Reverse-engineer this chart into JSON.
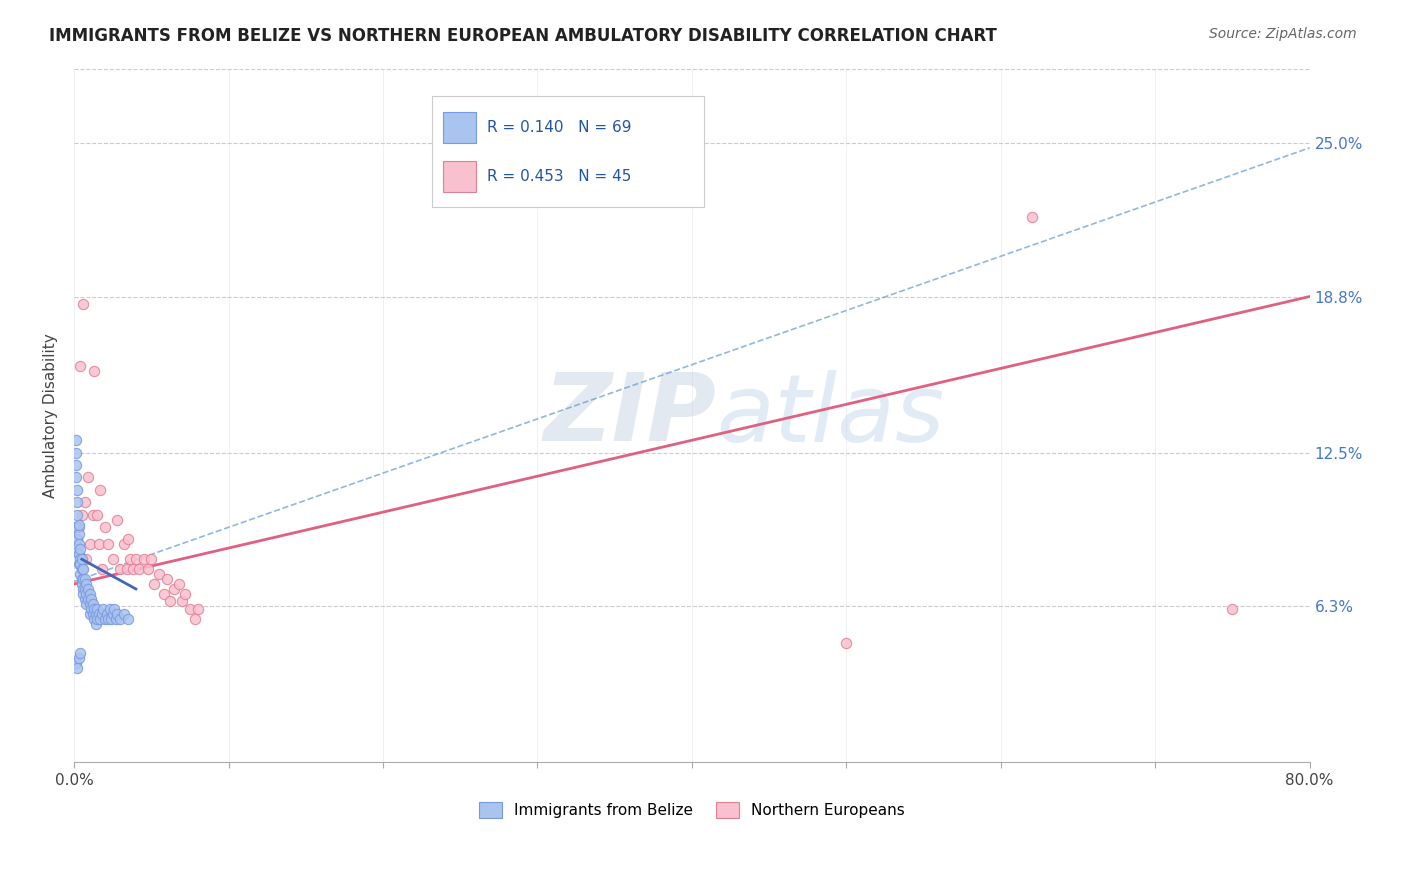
{
  "title": "IMMIGRANTS FROM BELIZE VS NORTHERN EUROPEAN AMBULATORY DISABILITY CORRELATION CHART",
  "source": "Source: ZipAtlas.com",
  "ylabel": "Ambulatory Disability",
  "xlim": [
    0.0,
    0.8
  ],
  "ylim": [
    0.0,
    0.28
  ],
  "xticks": [
    0.0,
    0.1,
    0.2,
    0.3,
    0.4,
    0.5,
    0.6,
    0.7,
    0.8
  ],
  "xtick_labels": [
    "0.0%",
    "",
    "",
    "",
    "",
    "",
    "",
    "",
    "80.0%"
  ],
  "ytick_positions": [
    0.063,
    0.125,
    0.188,
    0.25
  ],
  "ytick_labels": [
    "6.3%",
    "12.5%",
    "18.8%",
    "25.0%"
  ],
  "series1_name": "Immigrants from Belize",
  "series1_R": 0.14,
  "series1_N": 69,
  "series1_color": "#aac4f0",
  "series1_edge": "#7799dd",
  "series2_name": "Northern Europeans",
  "series2_R": 0.453,
  "series2_N": 45,
  "series2_color": "#f9c0d0",
  "series2_edge": "#e08090",
  "trend1_color": "#6699cc",
  "trend2_color": "#e06080",
  "watermark_zip": "ZIP",
  "watermark_atlas": "atlas",
  "background_color": "#ffffff",
  "grid_color": "#cccccc",
  "belize_x": [
    0.001,
    0.001,
    0.001,
    0.001,
    0.001,
    0.002,
    0.002,
    0.002,
    0.002,
    0.002,
    0.002,
    0.003,
    0.003,
    0.003,
    0.003,
    0.003,
    0.004,
    0.004,
    0.004,
    0.004,
    0.005,
    0.005,
    0.005,
    0.005,
    0.006,
    0.006,
    0.006,
    0.006,
    0.007,
    0.007,
    0.007,
    0.008,
    0.008,
    0.008,
    0.009,
    0.009,
    0.01,
    0.01,
    0.01,
    0.011,
    0.011,
    0.012,
    0.012,
    0.013,
    0.013,
    0.014,
    0.014,
    0.015,
    0.015,
    0.016,
    0.017,
    0.018,
    0.019,
    0.02,
    0.021,
    0.022,
    0.023,
    0.024,
    0.025,
    0.026,
    0.027,
    0.028,
    0.03,
    0.032,
    0.035,
    0.001,
    0.002,
    0.003,
    0.004
  ],
  "belize_y": [
    0.115,
    0.12,
    0.125,
    0.13,
    0.095,
    0.1,
    0.105,
    0.11,
    0.09,
    0.095,
    0.085,
    0.088,
    0.092,
    0.096,
    0.08,
    0.084,
    0.082,
    0.086,
    0.076,
    0.08,
    0.078,
    0.082,
    0.074,
    0.072,
    0.074,
    0.078,
    0.07,
    0.068,
    0.074,
    0.07,
    0.066,
    0.072,
    0.068,
    0.064,
    0.07,
    0.066,
    0.068,
    0.064,
    0.06,
    0.066,
    0.062,
    0.064,
    0.06,
    0.062,
    0.058,
    0.06,
    0.056,
    0.062,
    0.058,
    0.06,
    0.058,
    0.06,
    0.062,
    0.058,
    0.06,
    0.058,
    0.062,
    0.058,
    0.06,
    0.062,
    0.058,
    0.06,
    0.058,
    0.06,
    0.058,
    0.04,
    0.038,
    0.042,
    0.044
  ],
  "ne_x": [
    0.002,
    0.003,
    0.004,
    0.005,
    0.006,
    0.007,
    0.008,
    0.009,
    0.01,
    0.012,
    0.013,
    0.015,
    0.016,
    0.017,
    0.018,
    0.02,
    0.022,
    0.025,
    0.028,
    0.03,
    0.032,
    0.034,
    0.035,
    0.036,
    0.038,
    0.04,
    0.042,
    0.045,
    0.048,
    0.05,
    0.052,
    0.055,
    0.058,
    0.06,
    0.062,
    0.065,
    0.068,
    0.07,
    0.072,
    0.075,
    0.078,
    0.08,
    0.5,
    0.62,
    0.75
  ],
  "ne_y": [
    0.09,
    0.095,
    0.16,
    0.1,
    0.185,
    0.105,
    0.082,
    0.115,
    0.088,
    0.1,
    0.158,
    0.1,
    0.088,
    0.11,
    0.078,
    0.095,
    0.088,
    0.082,
    0.098,
    0.078,
    0.088,
    0.078,
    0.09,
    0.082,
    0.078,
    0.082,
    0.078,
    0.082,
    0.078,
    0.082,
    0.072,
    0.076,
    0.068,
    0.074,
    0.065,
    0.07,
    0.072,
    0.065,
    0.068,
    0.062,
    0.058,
    0.062,
    0.048,
    0.22,
    0.062
  ],
  "trend1_x0": 0.0,
  "trend1_y0": 0.073,
  "trend1_x1": 0.8,
  "trend1_y1": 0.248,
  "trend2_x0": 0.005,
  "trend2_y0": 0.082,
  "trend2_x1": 0.04,
  "trend2_y1": 0.07
}
